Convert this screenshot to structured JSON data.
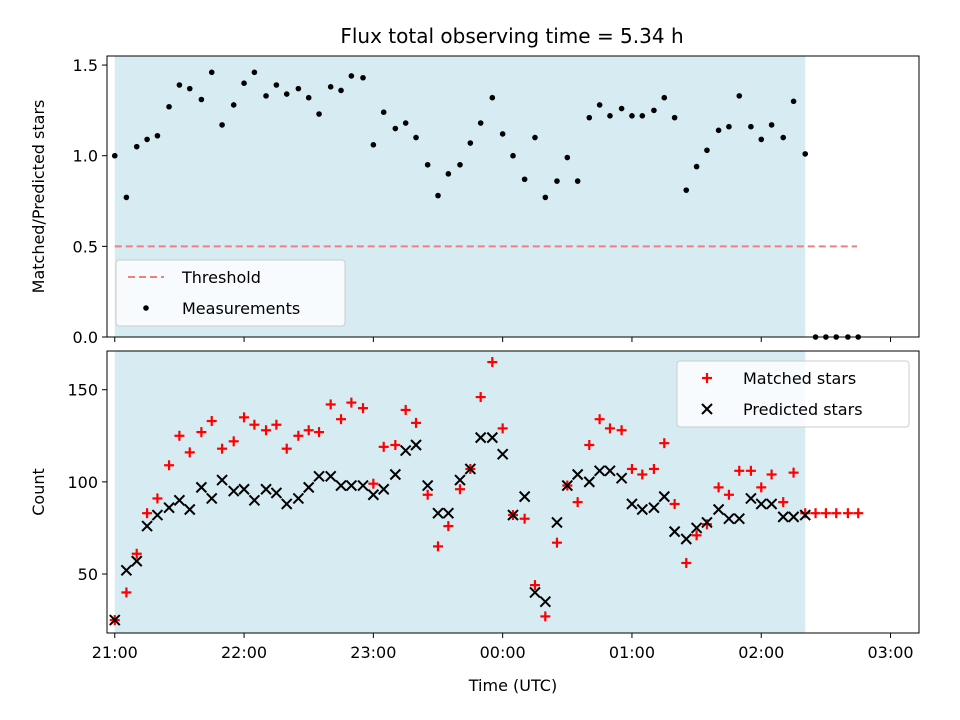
{
  "title": "Flux total observing time = 5.34 h",
  "chart_data": [
    {
      "type": "scatter",
      "ylabel": "Matched/Predicted stars",
      "xlabel": "",
      "xlim": [
        -0.06,
        6.22
      ],
      "ylim": [
        0,
        1.55
      ],
      "yticks": [
        0,
        0.5,
        1.0,
        1.5
      ],
      "ytick_labels": [
        "0.0",
        "0.5",
        "1.0",
        "1.5"
      ],
      "xticks": [
        0,
        1,
        2,
        3,
        4,
        5,
        6
      ],
      "grid": false,
      "shaded_span": {
        "x_start": 0.0,
        "x_end": 5.34,
        "color": "#add8e6"
      },
      "legend": {
        "placement": "lower-left"
      },
      "threshold": {
        "name": "Threshold",
        "value": 0.5,
        "x_range": [
          0,
          5.74
        ],
        "color": "#f08080"
      },
      "series": [
        {
          "name": "Measurements",
          "marker": "dot",
          "color": "#000000",
          "x": [
            0.0,
            0.09,
            0.17,
            0.25,
            0.33,
            0.42,
            0.5,
            0.58,
            0.67,
            0.75,
            0.83,
            0.92,
            1.0,
            1.08,
            1.17,
            1.25,
            1.33,
            1.42,
            1.5,
            1.58,
            1.67,
            1.75,
            1.83,
            1.92,
            2.0,
            2.08,
            2.17,
            2.25,
            2.33,
            2.42,
            2.5,
            2.58,
            2.67,
            2.75,
            2.83,
            2.92,
            3.0,
            3.08,
            3.17,
            3.25,
            3.33,
            3.42,
            3.5,
            3.58,
            3.67,
            3.75,
            3.83,
            3.92,
            4.0,
            4.08,
            4.17,
            4.25,
            4.33,
            4.42,
            4.5,
            4.58,
            4.67,
            4.75,
            4.83,
            4.92,
            5.0,
            5.08,
            5.17,
            5.25,
            5.34,
            5.42,
            5.5,
            5.58,
            5.67,
            5.75
          ],
          "y": [
            1.0,
            0.77,
            1.05,
            1.09,
            1.11,
            1.27,
            1.39,
            1.37,
            1.31,
            1.46,
            1.17,
            1.28,
            1.4,
            1.46,
            1.33,
            1.39,
            1.34,
            1.37,
            1.32,
            1.23,
            1.38,
            1.36,
            1.44,
            1.43,
            1.06,
            1.24,
            1.15,
            1.18,
            1.1,
            0.95,
            0.78,
            0.9,
            0.95,
            1.07,
            1.18,
            1.32,
            1.12,
            1.0,
            0.87,
            1.1,
            0.77,
            0.86,
            0.99,
            0.86,
            1.21,
            1.28,
            1.22,
            1.26,
            1.22,
            1.22,
            1.25,
            1.32,
            1.21,
            0.81,
            0.94,
            1.03,
            1.14,
            1.16,
            1.33,
            1.16,
            1.09,
            1.17,
            1.1,
            1.3,
            1.01,
            0.0,
            0.0,
            0.0,
            0.0,
            0.0
          ]
        }
      ]
    },
    {
      "type": "scatter",
      "ylabel": "Count",
      "xlabel": "Time (UTC)",
      "xlim": [
        -0.06,
        6.22
      ],
      "ylim": [
        18,
        171
      ],
      "yticks": [
        50,
        100,
        150
      ],
      "xticks": [
        0,
        1,
        2,
        3,
        4,
        5,
        6
      ],
      "xtick_labels": [
        "21:00",
        "22:00",
        "23:00",
        "00:00",
        "01:00",
        "02:00",
        "03:00"
      ],
      "grid": false,
      "shaded_span": {
        "x_start": 0.0,
        "x_end": 5.34,
        "color": "#add8e6"
      },
      "legend": {
        "placement": "top-right"
      },
      "series": [
        {
          "name": "Matched stars",
          "marker": "plus",
          "color": "#ff0000",
          "x": [
            0.0,
            0.09,
            0.17,
            0.25,
            0.33,
            0.42,
            0.5,
            0.58,
            0.67,
            0.75,
            0.83,
            0.92,
            1.0,
            1.08,
            1.17,
            1.25,
            1.33,
            1.42,
            1.5,
            1.58,
            1.67,
            1.75,
            1.83,
            1.92,
            2.0,
            2.08,
            2.17,
            2.25,
            2.33,
            2.42,
            2.5,
            2.58,
            2.67,
            2.75,
            2.83,
            2.92,
            3.0,
            3.08,
            3.17,
            3.25,
            3.33,
            3.42,
            3.5,
            3.58,
            3.67,
            3.75,
            3.83,
            3.92,
            4.0,
            4.08,
            4.17,
            4.25,
            4.33,
            4.42,
            4.5,
            4.58,
            4.67,
            4.75,
            4.83,
            4.92,
            5.0,
            5.08,
            5.17,
            5.25,
            5.34,
            5.42,
            5.5,
            5.58,
            5.67,
            5.75
          ],
          "y": [
            25,
            40,
            61,
            83,
            91,
            109,
            125,
            116,
            127,
            133,
            118,
            122,
            135,
            131,
            128,
            131,
            118,
            125,
            128,
            127,
            142,
            134,
            143,
            140,
            99,
            119,
            120,
            139,
            132,
            93,
            65,
            76,
            96,
            107,
            146,
            165,
            129,
            82,
            80,
            44,
            27,
            67,
            98,
            89,
            120,
            134,
            129,
            128,
            107,
            104,
            107,
            121,
            88,
            56,
            71,
            77,
            97,
            93,
            106,
            106,
            97,
            104,
            89,
            105,
            83,
            83,
            83,
            83,
            83,
            83
          ]
        },
        {
          "name": "Predicted stars",
          "marker": "x",
          "color": "#000000",
          "x": [
            0.0,
            0.09,
            0.17,
            0.25,
            0.33,
            0.42,
            0.5,
            0.58,
            0.67,
            0.75,
            0.83,
            0.92,
            1.0,
            1.08,
            1.17,
            1.25,
            1.33,
            1.42,
            1.5,
            1.58,
            1.67,
            1.75,
            1.83,
            1.92,
            2.0,
            2.08,
            2.17,
            2.25,
            2.33,
            2.42,
            2.5,
            2.58,
            2.67,
            2.75,
            2.83,
            2.92,
            3.0,
            3.08,
            3.17,
            3.25,
            3.33,
            3.42,
            3.5,
            3.58,
            3.67,
            3.75,
            3.83,
            3.92,
            4.0,
            4.08,
            4.17,
            4.25,
            4.33,
            4.42,
            4.5,
            4.58,
            4.67,
            4.75,
            4.83,
            4.92,
            5.0,
            5.08,
            5.17,
            5.25,
            5.34
          ],
          "y": [
            25,
            52,
            57,
            76,
            82,
            86,
            90,
            85,
            97,
            91,
            101,
            95,
            96,
            90,
            96,
            94,
            88,
            91,
            97,
            103,
            103,
            98,
            98,
            98,
            93,
            96,
            104,
            117,
            120,
            98,
            83,
            83,
            101,
            107,
            124,
            124,
            115,
            82,
            92,
            40,
            35,
            78,
            98,
            104,
            100,
            106,
            106,
            102,
            88,
            85,
            86,
            92,
            73,
            69,
            75,
            78,
            85,
            80,
            80,
            91,
            88,
            88,
            81,
            81,
            82
          ]
        }
      ]
    }
  ]
}
